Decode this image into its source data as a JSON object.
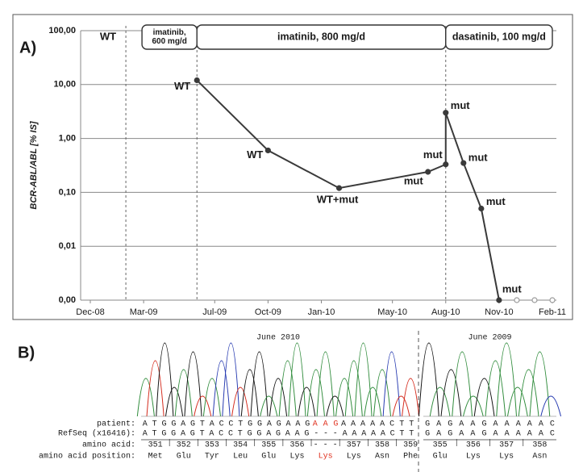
{
  "chart_data": {
    "type": "line",
    "panel_label": "A)",
    "y_label": "BCR-ABL/ABL [% IS]",
    "log_y": true,
    "grid": true,
    "xlim": [
      "2008-12",
      "2011-02"
    ],
    "xticks": [
      {
        "value": "2008-12",
        "label": "Dec-08"
      },
      {
        "value": "2009-03",
        "label": "Mar-09"
      },
      {
        "value": "2009-07",
        "label": "Jul-09"
      },
      {
        "value": "2009-10",
        "label": "Oct-09"
      },
      {
        "value": "2010-01",
        "label": "Jan-10"
      },
      {
        "value": "2010-05",
        "label": "May-10"
      },
      {
        "value": "2010-08",
        "label": "Aug-10"
      },
      {
        "value": "2010-11",
        "label": "Nov-10"
      },
      {
        "value": "2011-02",
        "label": "Feb-11"
      }
    ],
    "ylim": [
      0.001,
      100
    ],
    "yticks": [
      {
        "value": 100,
        "label": "100,00"
      },
      {
        "value": 10,
        "label": "10,00"
      },
      {
        "value": 1,
        "label": "1,00"
      },
      {
        "value": 0.1,
        "label": "0,10"
      },
      {
        "value": 0.01,
        "label": "0,01"
      },
      {
        "value": 0.001,
        "label": "0,00"
      }
    ],
    "series": [
      {
        "color": "#3a3a3a",
        "marker": "filled",
        "x": [
          "2009-06",
          "2009-10",
          "2010-02",
          "2010-07",
          "2010-08",
          "2010-08",
          "2010-09",
          "2010-10",
          "2010-11"
        ],
        "values": [
          12,
          0.6,
          0.12,
          0.24,
          0.33,
          3,
          0.35,
          0.05,
          0.001
        ],
        "point_labels": [
          "WT",
          "WT",
          "WT+mut",
          "mut",
          "mut",
          "mut",
          "mut",
          "mut",
          "mut"
        ]
      },
      {
        "color": "#9a9a9a",
        "marker": "open",
        "x": [
          "2010-12",
          "2011-01",
          "2011-02"
        ],
        "values": [
          0.001,
          0.001,
          0.001
        ]
      }
    ],
    "therapies": [
      {
        "start": "2009-02",
        "end": "2009-06",
        "label": [
          "imatinib,",
          "600 mg/d"
        ]
      },
      {
        "start": "2009-06",
        "end": "2010-08",
        "label": [
          "imatinib, 800 mg/d"
        ]
      },
      {
        "start": "2010-08",
        "end": "2011-02",
        "label": [
          "dasatinib, 100 mg/d"
        ]
      }
    ],
    "annotations": [
      {
        "text": "WT",
        "x": "2008-12",
        "y": 100
      }
    ]
  },
  "sequence_panel": {
    "panel_label": "B)",
    "row_labels": [
      "patient:",
      "RefSeq (x16416):",
      "amino acid:",
      "amino acid position:"
    ],
    "left": {
      "title": "June 2010",
      "patient": [
        {
          "text": "ATGGAGTACCTGGAGAAG"
        },
        {
          "text": "AAG",
          "color": "#e0301e"
        },
        {
          "text": "AAAAACTT"
        }
      ],
      "refseq": "ATGGAGTACCTGGAGAAG---AAAAACTT",
      "positions": [
        351,
        352,
        353,
        354,
        355,
        356,
        "- - -",
        357,
        358,
        359
      ],
      "amino_acids": [
        {
          "text": "Met"
        },
        {
          "text": "Glu"
        },
        {
          "text": "Tyr"
        },
        {
          "text": "Leu"
        },
        {
          "text": "Glu"
        },
        {
          "text": "Lys"
        },
        {
          "text": "Lys",
          "color": "#e0301e"
        },
        {
          "text": "Lys"
        },
        {
          "text": "Asn"
        },
        {
          "text": "Phe"
        }
      ]
    },
    "right": {
      "title": "June 2009",
      "patient": [
        {
          "text": "GAGAAGAAAAAC"
        }
      ],
      "refseq": "GAGAAGAAAAAC",
      "positions": [
        355,
        356,
        357,
        358
      ],
      "amino_acids": [
        {
          "text": "Glu"
        },
        {
          "text": "Lys"
        },
        {
          "text": "Lys"
        },
        {
          "text": "Asn"
        }
      ]
    }
  }
}
